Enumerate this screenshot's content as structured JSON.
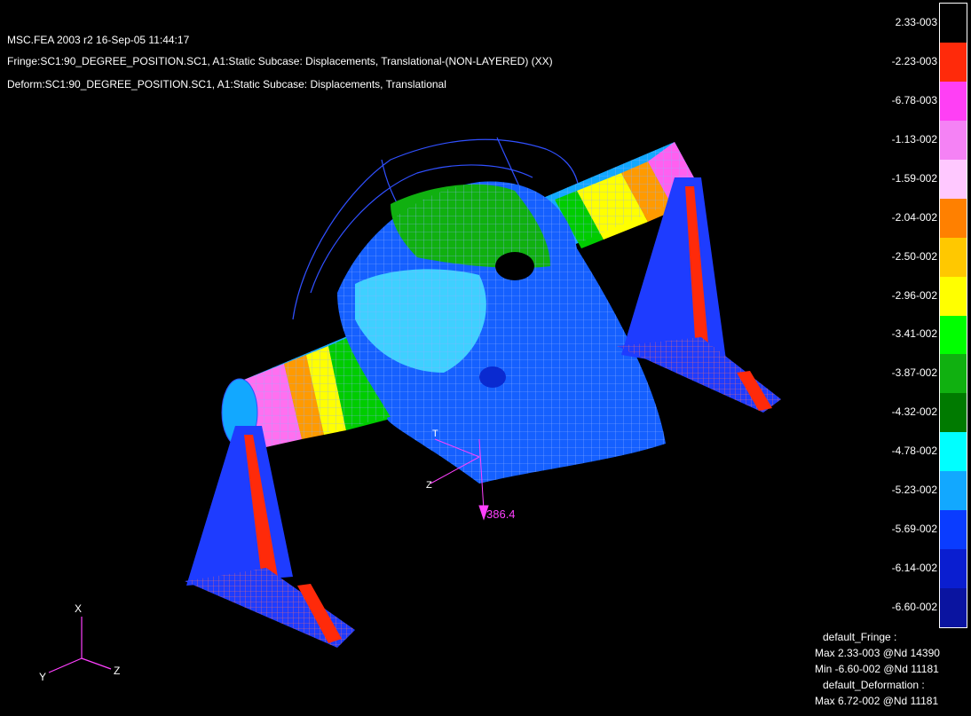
{
  "header": {
    "line1": "MSC.FEA 2003 r2 16-Sep-05 11:44:17",
    "line2": "Fringe:SC1:90_DEGREE_POSITION.SC1, A1:Static Subcase: Displacements, Translational-(NON-LAYERED) (XX)",
    "line3": "Deform:SC1:90_DEGREE_POSITION.SC1, A1:Static Subcase: Displacements, Translational"
  },
  "legend": {
    "colors": [
      "#000000",
      "#ff2a0a",
      "#ff3ff5",
      "#f582f5",
      "#ffc8ff",
      "#ff8000",
      "#ffc800",
      "#ffff00",
      "#00ff00",
      "#10b010",
      "#007a00",
      "#00ffff",
      "#12a8ff",
      "#0a3cff",
      "#0a1ed0",
      "#0a14a0"
    ],
    "values": [
      "2.33-003",
      "-2.23-003",
      "-6.78-003",
      "-1.13-002",
      "-1.59-002",
      "-2.04-002",
      "-2.50-002",
      "-2.96-002",
      "-3.41-002",
      "-3.87-002",
      "-4.32-002",
      "-4.78-002",
      "-5.23-002",
      "-5.69-002",
      "-6.14-002",
      "-6.60-002"
    ]
  },
  "summary": {
    "fringe_title": "default_Fringe :",
    "fringe_max": "Max 2.33-003 @Nd 14390",
    "fringe_min": "Min -6.60-002 @Nd 11181",
    "deform_title": "default_Deformation :",
    "deform_max": "Max 6.72-002 @Nd 11181"
  },
  "model": {
    "load_value": "386.4",
    "local_axis_labels": [
      "T",
      "Z"
    ],
    "global_axis_labels": [
      "X",
      "Y",
      "Z"
    ]
  }
}
